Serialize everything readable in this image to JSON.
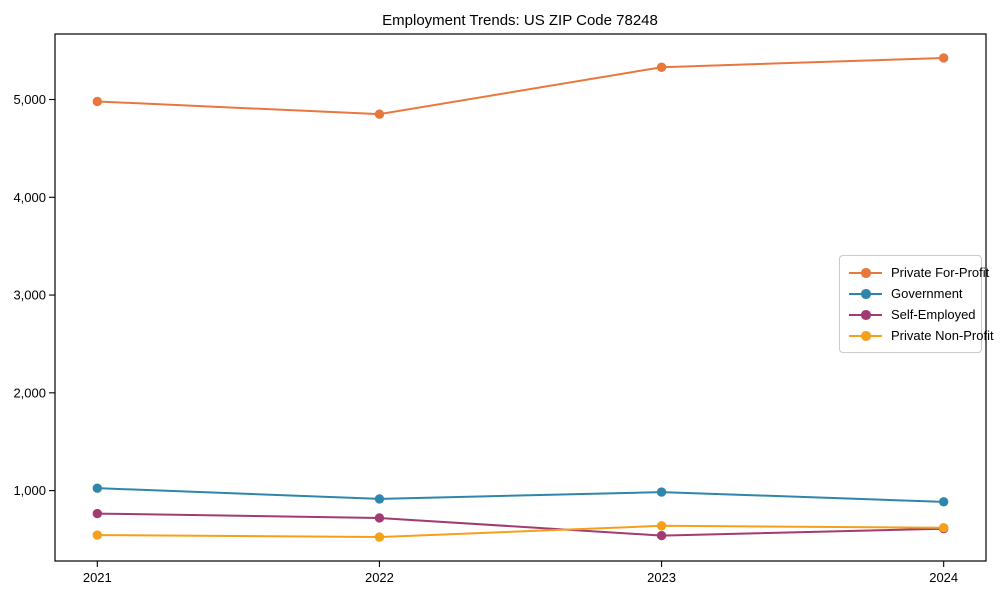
{
  "title": "Employment Trends: US ZIP Code 78248",
  "chart_data": {
    "type": "line",
    "title": "Employment Trends: US ZIP Code 78248",
    "x": [
      2021,
      2022,
      2023,
      2024
    ],
    "xtick_labels": [
      "2021",
      "2022",
      "2023",
      "2024"
    ],
    "yticks": [
      1000,
      2000,
      3000,
      4000,
      5000
    ],
    "ytick_labels": [
      "1,000",
      "2,000",
      "3,000",
      "4,000",
      "5,000"
    ],
    "xlim": [
      2020.85,
      2024.15
    ],
    "ylim": [
      280,
      5670
    ],
    "grid": false,
    "legend_position": "center right",
    "xlabel": "",
    "ylabel": "",
    "series": [
      {
        "name": "Private For-Profit",
        "color": "#e8773d",
        "values": [
          4980,
          4850,
          5330,
          5425
        ]
      },
      {
        "name": "Government",
        "color": "#2e86ab",
        "values": [
          1025,
          915,
          985,
          885
        ]
      },
      {
        "name": "Self-Employed",
        "color": "#a23b72",
        "values": [
          765,
          720,
          540,
          610
        ]
      },
      {
        "name": "Private Non-Profit",
        "color": "#f5a01b",
        "values": [
          545,
          525,
          640,
          620
        ]
      }
    ]
  }
}
